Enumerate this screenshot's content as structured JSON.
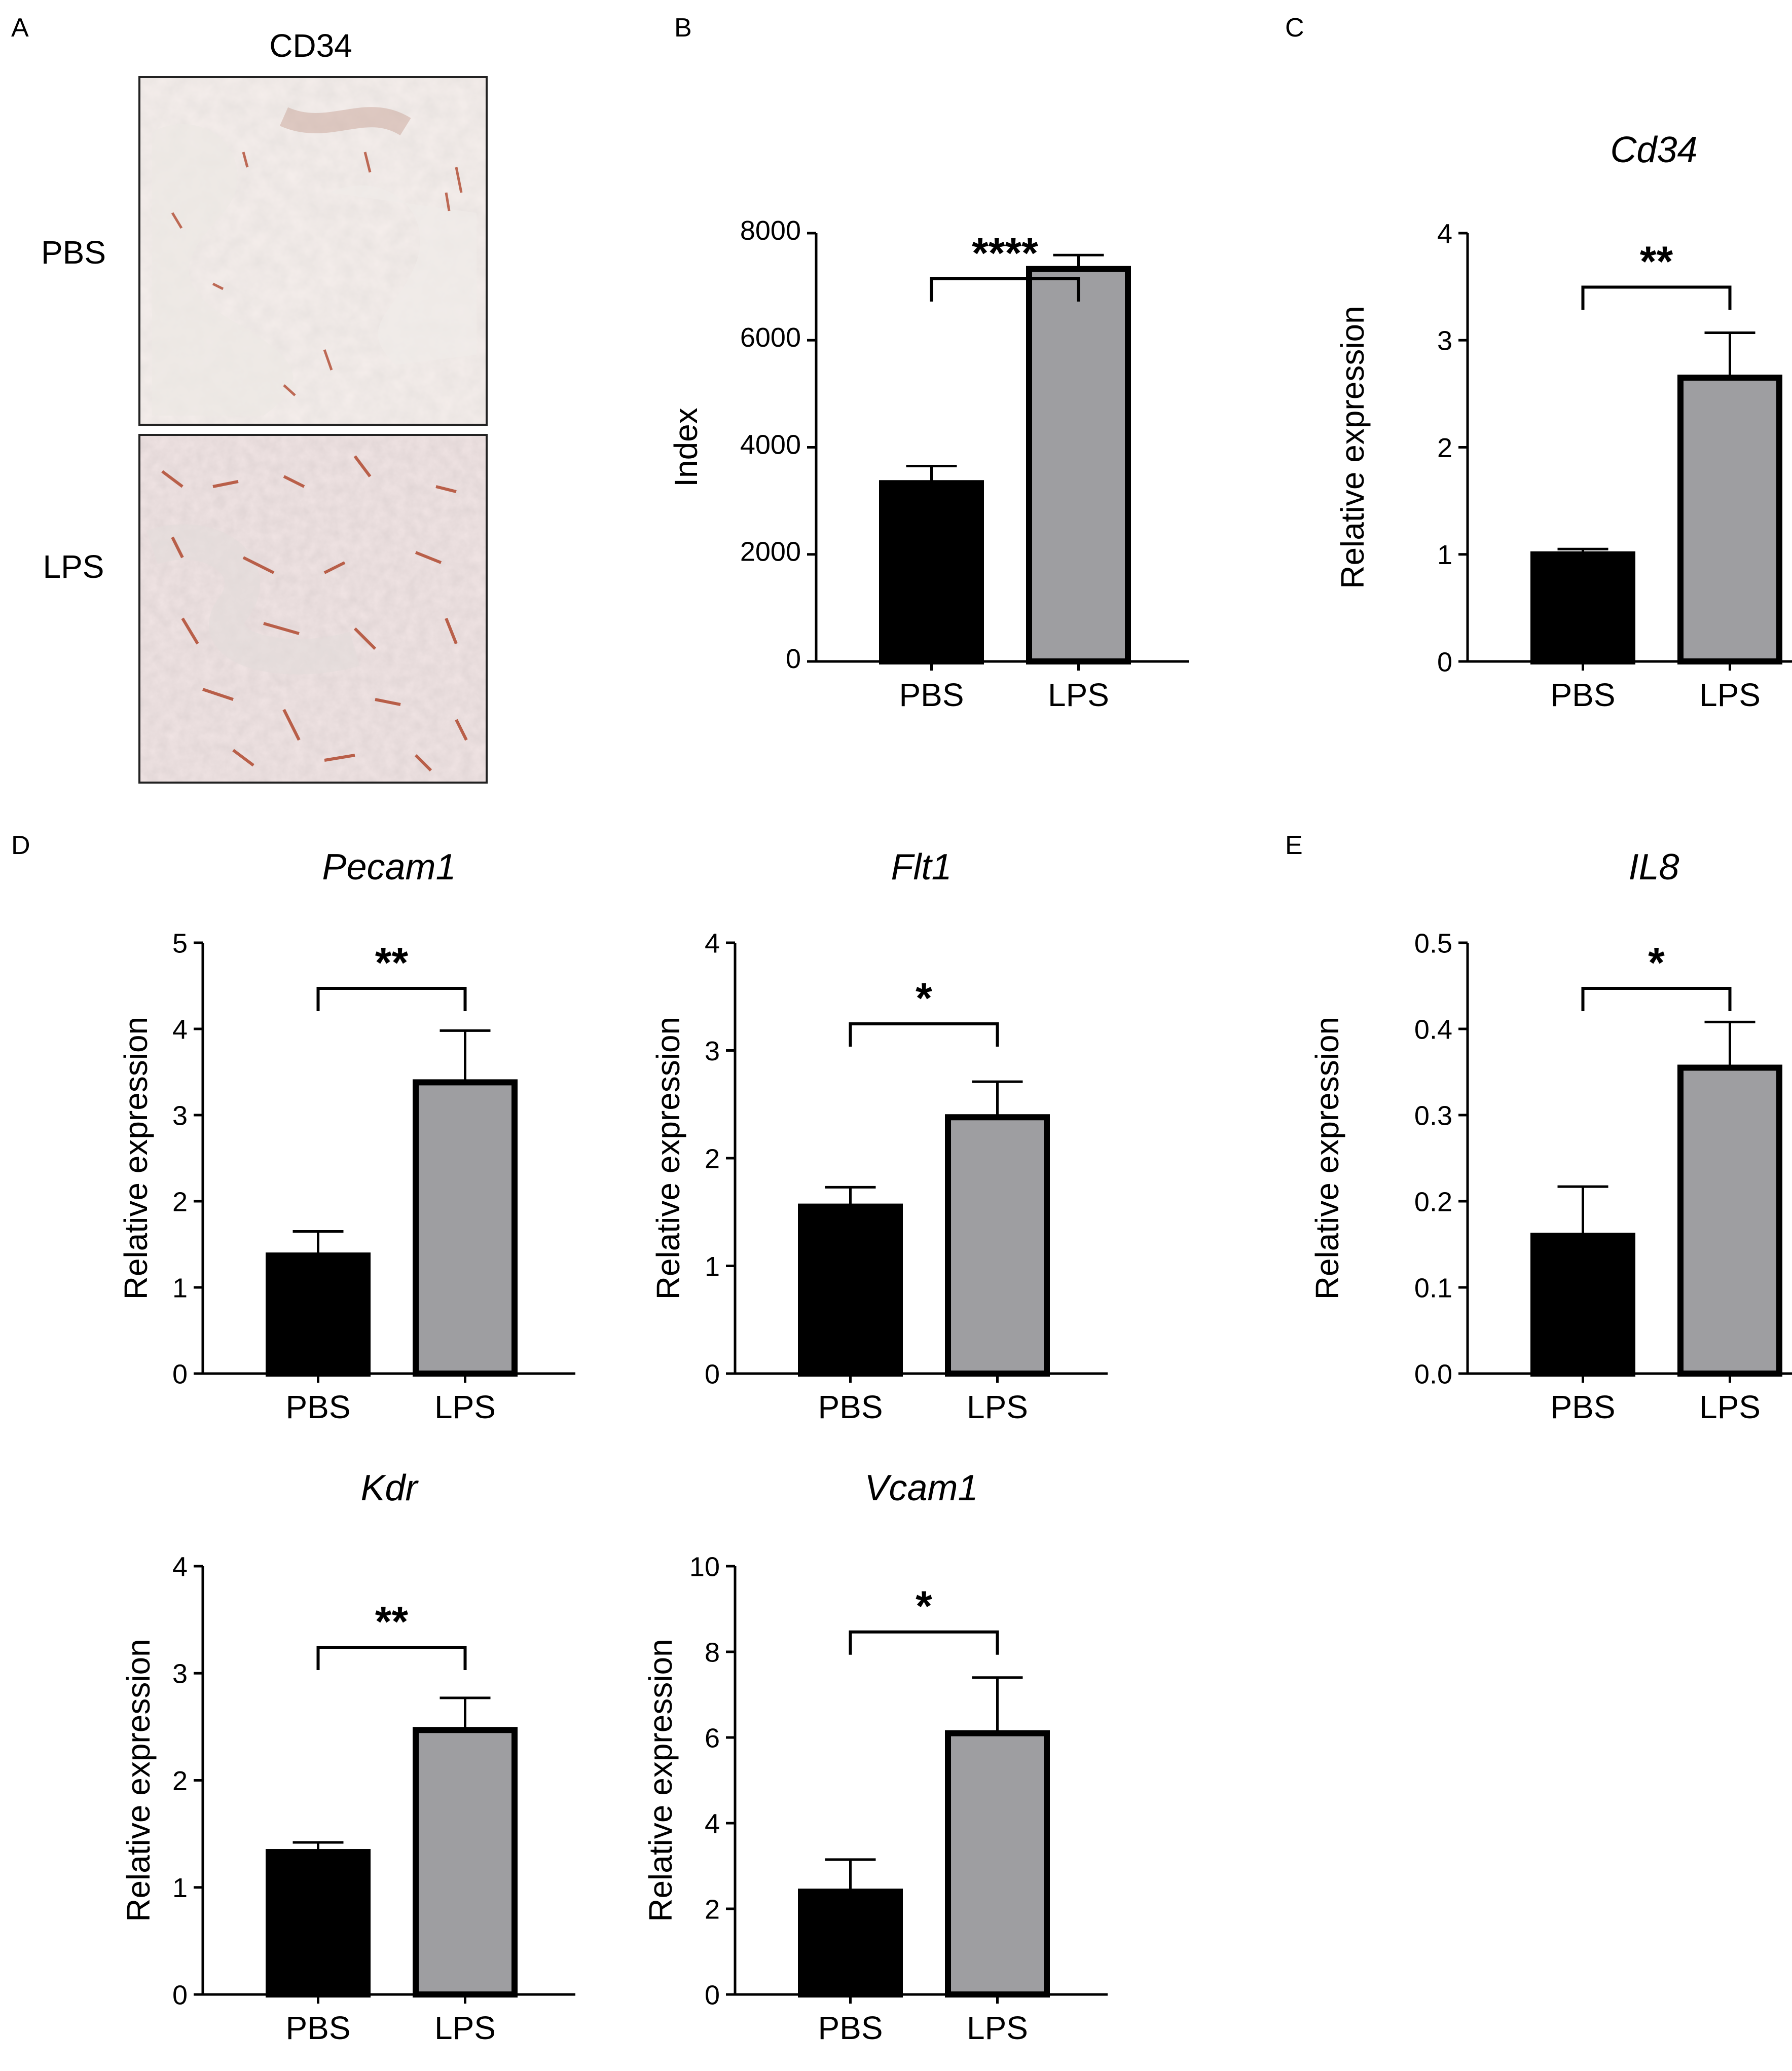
{
  "panel_letters": [
    "A",
    "B",
    "C",
    "D",
    "E"
  ],
  "micrographs": {
    "column_label": "CD34",
    "rows": [
      {
        "label": "PBS"
      },
      {
        "label": "LPS"
      }
    ]
  },
  "colors": {
    "pbs_bar": "#000000",
    "lps_bar": "#9e9ea1",
    "tissue_light": "#e6ded9",
    "tissue_pink": "#d6b4aa",
    "vessel_red": "#b0492f"
  },
  "chart_data": [
    {
      "id": "B",
      "type": "bar",
      "title": "",
      "xlabel": "",
      "ylabel": "Index",
      "categories": [
        "PBS",
        "LPS"
      ],
      "values": [
        3330,
        7330
      ],
      "errors": [
        320,
        260
      ],
      "ylim": [
        0,
        8000
      ],
      "yticks": [
        "0",
        "2000",
        "4000",
        "6000",
        "8000"
      ],
      "significance": "****",
      "grid": false
    },
    {
      "id": "C",
      "type": "bar",
      "title": "Cd34",
      "xlabel": "",
      "ylabel": "Relative expression",
      "categories": [
        "PBS",
        "LPS"
      ],
      "values": [
        1.0,
        2.65
      ],
      "errors": [
        0.05,
        0.42
      ],
      "ylim": [
        0,
        4
      ],
      "yticks": [
        "0",
        "1",
        "2",
        "3",
        "4"
      ],
      "significance": "**",
      "grid": false
    },
    {
      "id": "D-Pecam1",
      "type": "bar",
      "title": "Pecam1",
      "xlabel": "",
      "ylabel": "Relative expression",
      "categories": [
        "PBS",
        "LPS"
      ],
      "values": [
        1.37,
        3.38
      ],
      "errors": [
        0.28,
        0.6
      ],
      "ylim": [
        0,
        5
      ],
      "yticks": [
        "0",
        "1",
        "2",
        "3",
        "4",
        "5"
      ],
      "significance": "**",
      "grid": false
    },
    {
      "id": "D-Flt1",
      "type": "bar",
      "title": "Flt1",
      "xlabel": "",
      "ylabel": "Relative expression",
      "categories": [
        "PBS",
        "LPS"
      ],
      "values": [
        1.55,
        2.38
      ],
      "errors": [
        0.18,
        0.33
      ],
      "ylim": [
        0,
        4
      ],
      "yticks": [
        "0",
        "1",
        "2",
        "3",
        "4"
      ],
      "significance": "*",
      "grid": false
    },
    {
      "id": "E-IL8",
      "type": "bar",
      "title": "IL8",
      "xlabel": "",
      "ylabel": "Relative expression",
      "categories": [
        "PBS",
        "LPS"
      ],
      "values": [
        0.16,
        0.355
      ],
      "errors": [
        0.057,
        0.053
      ],
      "ylim": [
        0,
        0.5
      ],
      "yticks": [
        "0.0",
        "0.1",
        "0.2",
        "0.3",
        "0.4",
        "0.5"
      ],
      "significance": "*",
      "grid": false
    },
    {
      "id": "D-Kdr",
      "type": "bar",
      "title": "Kdr",
      "xlabel": "",
      "ylabel": "Relative expression",
      "categories": [
        "PBS",
        "LPS"
      ],
      "values": [
        1.33,
        2.47
      ],
      "errors": [
        0.09,
        0.3
      ],
      "ylim": [
        0,
        4
      ],
      "yticks": [
        "0",
        "1",
        "2",
        "3",
        "4"
      ],
      "significance": "**",
      "grid": false
    },
    {
      "id": "D-Vcam1",
      "type": "bar",
      "title": "Vcam1",
      "xlabel": "",
      "ylabel": "Relative expression",
      "categories": [
        "PBS",
        "LPS"
      ],
      "values": [
        2.4,
        6.1
      ],
      "errors": [
        0.75,
        1.3
      ],
      "ylim": [
        0,
        10
      ],
      "yticks": [
        "0",
        "2",
        "4",
        "6",
        "8",
        "10"
      ],
      "significance": "*",
      "grid": false
    }
  ]
}
